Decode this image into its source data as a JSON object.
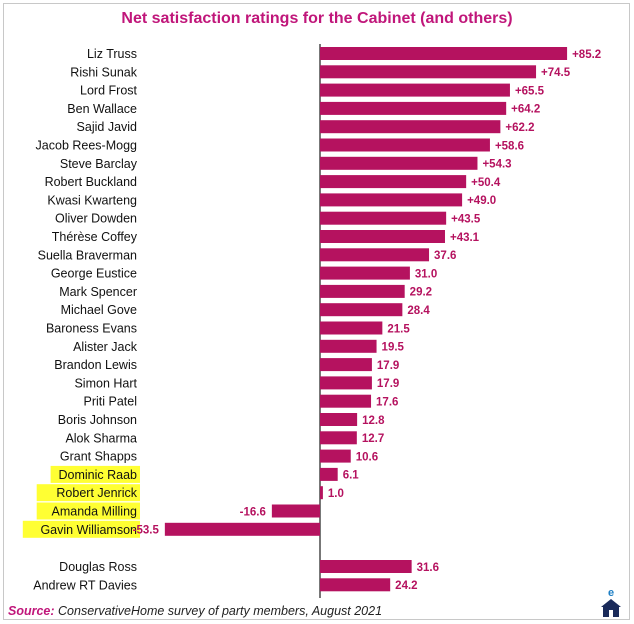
{
  "chart_data": {
    "type": "bar",
    "orientation": "horizontal",
    "title": "Net satisfaction ratings for the Cabinet (and others)",
    "categories": [
      "Liz Truss",
      "Rishi Sunak",
      "Lord Frost",
      "Ben Wallace",
      "Sajid Javid",
      "Jacob Rees-Mogg",
      "Steve Barclay",
      "Robert Buckland",
      "Kwasi Kwarteng",
      "Oliver Dowden",
      "Thérèse Coffey",
      "Suella Braverman",
      "George Eustice",
      "Mark Spencer",
      "Michael Gove",
      "Baroness Evans",
      "Alister Jack",
      "Brandon Lewis",
      "Simon Hart",
      "Priti Patel",
      "Boris Johnson",
      "Alok Sharma",
      "Grant Shapps",
      "Dominic Raab",
      "Robert Jenrick",
      "Amanda Milling",
      "Gavin Williamson",
      "Douglas Ross",
      "Andrew RT Davies"
    ],
    "values": [
      85.2,
      74.5,
      65.5,
      64.2,
      62.2,
      58.6,
      54.3,
      50.4,
      49.0,
      43.5,
      43.1,
      37.6,
      31.0,
      29.2,
      28.4,
      21.5,
      19.5,
      17.9,
      17.9,
      17.6,
      12.8,
      12.7,
      10.6,
      6.1,
      1.0,
      -16.6,
      -53.5,
      31.6,
      24.2
    ],
    "value_labels": [
      "+85.2",
      "+74.5",
      "+65.5",
      "+64.2",
      "+62.2",
      "+58.6",
      "+54.3",
      "+50.4",
      "+49.0",
      "+43.5",
      "+43.1",
      "37.6",
      "31.0",
      "29.2",
      "28.4",
      "21.5",
      "19.5",
      "17.9",
      "17.9",
      "17.6",
      "12.8",
      "12.7",
      "10.6",
      "6.1",
      "1.0",
      "-16.6",
      "-53.5",
      "31.6",
      "24.2"
    ],
    "highlighted": [
      "Dominic Raab",
      "Robert Jenrick",
      "Amanda Milling",
      "Gavin Williamson"
    ],
    "colors": {
      "bar": "#b5125f",
      "label": "#b5125f",
      "highlight": "#ffff33",
      "title": "#c0167a",
      "axis": "#777777"
    }
  },
  "source": {
    "label": "Source:",
    "text": "ConservativeHome survey of party members, August 2021"
  },
  "logo": {
    "text": "e"
  }
}
